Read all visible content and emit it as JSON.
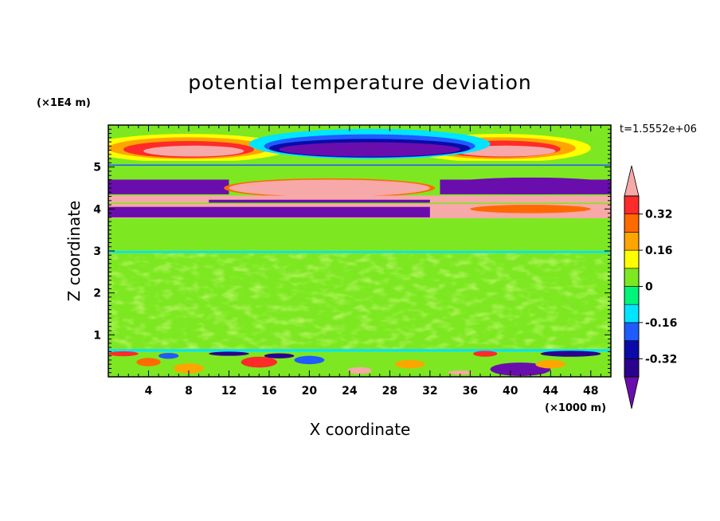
{
  "chart_data": {
    "type": "heatmap",
    "title": "potential temperature deviation",
    "xlabel": "X coordinate",
    "ylabel": "Z coordinate",
    "x_unit_label": "(×1000 m)",
    "y_unit_label": "(×1E4 m)",
    "time_label": "t=1.5552e+06",
    "xlim": [
      0,
      50
    ],
    "ylim": [
      0,
      6
    ],
    "x_ticks": [
      4,
      8,
      12,
      16,
      20,
      24,
      28,
      32,
      36,
      40,
      44,
      48
    ],
    "y_ticks": [
      1,
      2,
      3,
      4,
      5
    ],
    "colorbar": {
      "levels": [
        -0.4,
        -0.32,
        -0.24,
        -0.16,
        -0.08,
        0,
        0.08,
        0.16,
        0.24,
        0.32,
        0.4
      ],
      "tick_labels": [
        "0.32",
        "0.16",
        "0",
        "-0.16",
        "-0.32"
      ],
      "tick_values": [
        0.32,
        0.16,
        0,
        -0.16,
        -0.32
      ],
      "colors": [
        "#6a0dad",
        "#2b008f",
        "#0a0aa8",
        "#1f5bff",
        "#00e5ff",
        "#00f57a",
        "#7de821",
        "#ffff00",
        "#ffa500",
        "#ff6a00",
        "#ff2a2a",
        "#f7a8a8"
      ],
      "extend": "both"
    },
    "bands": [
      {
        "z": [
          5.75,
          6.0
        ],
        "value": 0.04
      },
      {
        "z": [
          5.3,
          5.7
        ],
        "value": 0.3,
        "note": "warm lobes near x 8 and x 38"
      },
      {
        "z": [
          5.3,
          5.7
        ],
        "value": -0.42,
        "note": "cold lobe x 18 to x 34"
      },
      {
        "z": [
          4.3,
          4.7
        ],
        "value": -0.42,
        "note": "cold x 0 to x 10 and x 34 to x 50"
      },
      {
        "z": [
          4.3,
          4.7
        ],
        "value": 0.44,
        "note": "warm x 12 to x 32"
      },
      {
        "z": [
          3.8,
          4.3
        ],
        "value": 0.42
      },
      {
        "z": [
          0.6,
          3.8
        ],
        "value": 0.02
      },
      {
        "z": [
          0.0,
          0.6
        ],
        "value": 0.05
      }
    ]
  }
}
